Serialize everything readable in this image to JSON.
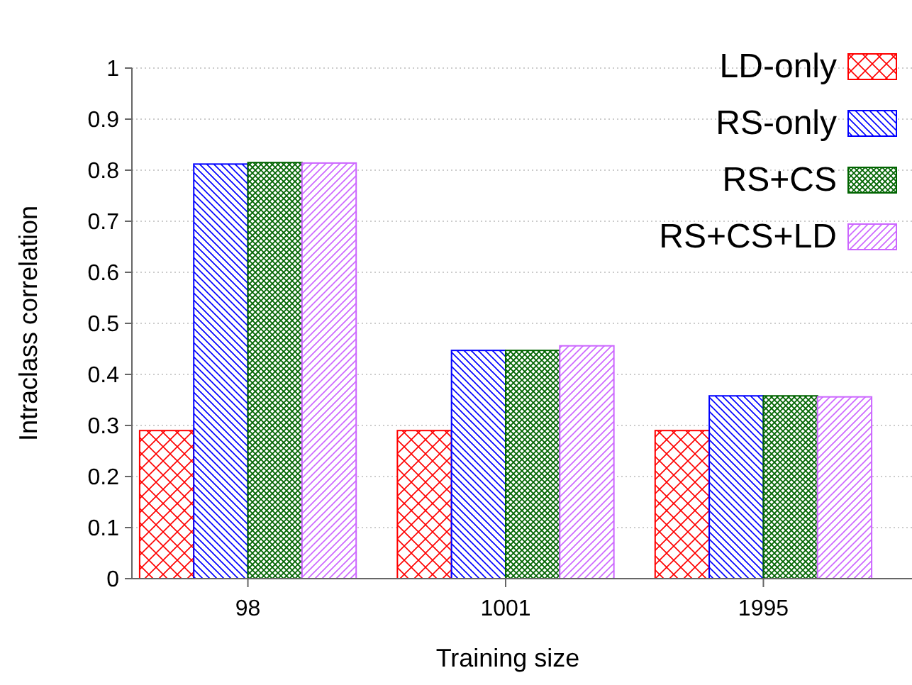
{
  "chart_data": {
    "type": "bar",
    "xlabel": "Training size",
    "ylabel": "Intraclass correlation",
    "categories": [
      "98",
      "1001",
      "1995"
    ],
    "series": [
      {
        "name": "LD-only",
        "color": "#ff0000",
        "values": [
          0.29,
          0.29,
          0.29
        ]
      },
      {
        "name": "RS-only",
        "color": "#0000ff",
        "values": [
          0.812,
          0.447,
          0.358
        ]
      },
      {
        "name": "RS+CS",
        "color": "#006400",
        "values": [
          0.815,
          0.447,
          0.358
        ]
      },
      {
        "name": "RS+CS+LD",
        "color": "#cc66ff",
        "values": [
          0.814,
          0.456,
          0.356
        ]
      }
    ],
    "ylim": [
      0,
      1
    ],
    "yticks": [
      0,
      0.1,
      0.2,
      0.3,
      0.4,
      0.5,
      0.6,
      0.7,
      0.8,
      0.9,
      1
    ],
    "grid": "y",
    "legend": "top right"
  }
}
